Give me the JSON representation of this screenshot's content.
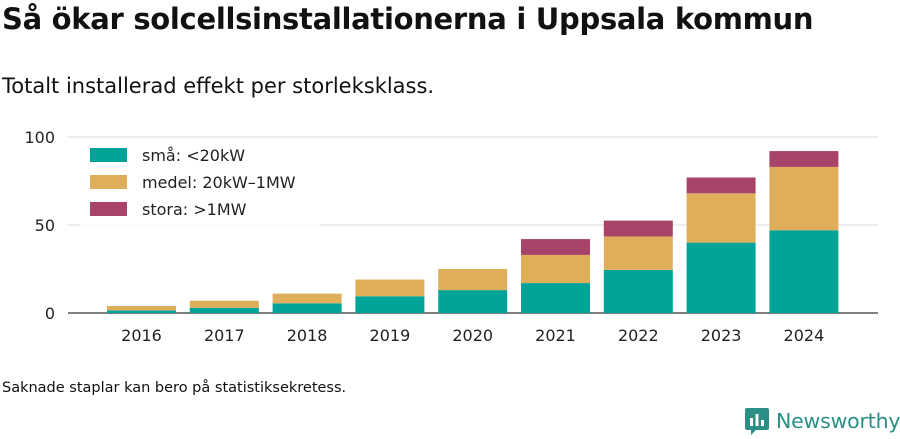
{
  "title": "Så ökar solcellsinstallationerna i Uppsala kommun",
  "subtitle": "Totalt installerad effekt per storleksklass.",
  "footnote": "Saknade staplar kan bero på statistiksekretess.",
  "brand": {
    "name": "Newsworthy",
    "icon": "newsworthy-logo-icon",
    "color": "#2b8f86"
  },
  "chart_data": {
    "type": "bar",
    "stacked": true,
    "categories": [
      "2016",
      "2017",
      "2018",
      "2019",
      "2020",
      "2021",
      "2022",
      "2023",
      "2024"
    ],
    "series": [
      {
        "name": "små: <20kW",
        "color": "#00a398",
        "values": [
          1.5,
          3,
          5.5,
          9.5,
          13,
          17,
          24.5,
          40,
          47
        ]
      },
      {
        "name": "medel: 20kW–1MW",
        "color": "#deae5a",
        "values": [
          2.5,
          4,
          5.5,
          9.5,
          12,
          16,
          19,
          28,
          36
        ]
      },
      {
        "name": "stora: >1MW",
        "color": "#a8436a",
        "values": [
          0,
          0,
          0,
          0,
          0,
          9,
          9,
          9,
          9
        ]
      }
    ],
    "ylim": [
      0,
      100
    ],
    "yticks": [
      0,
      50,
      100
    ],
    "grid": true,
    "legend": "top-left"
  }
}
